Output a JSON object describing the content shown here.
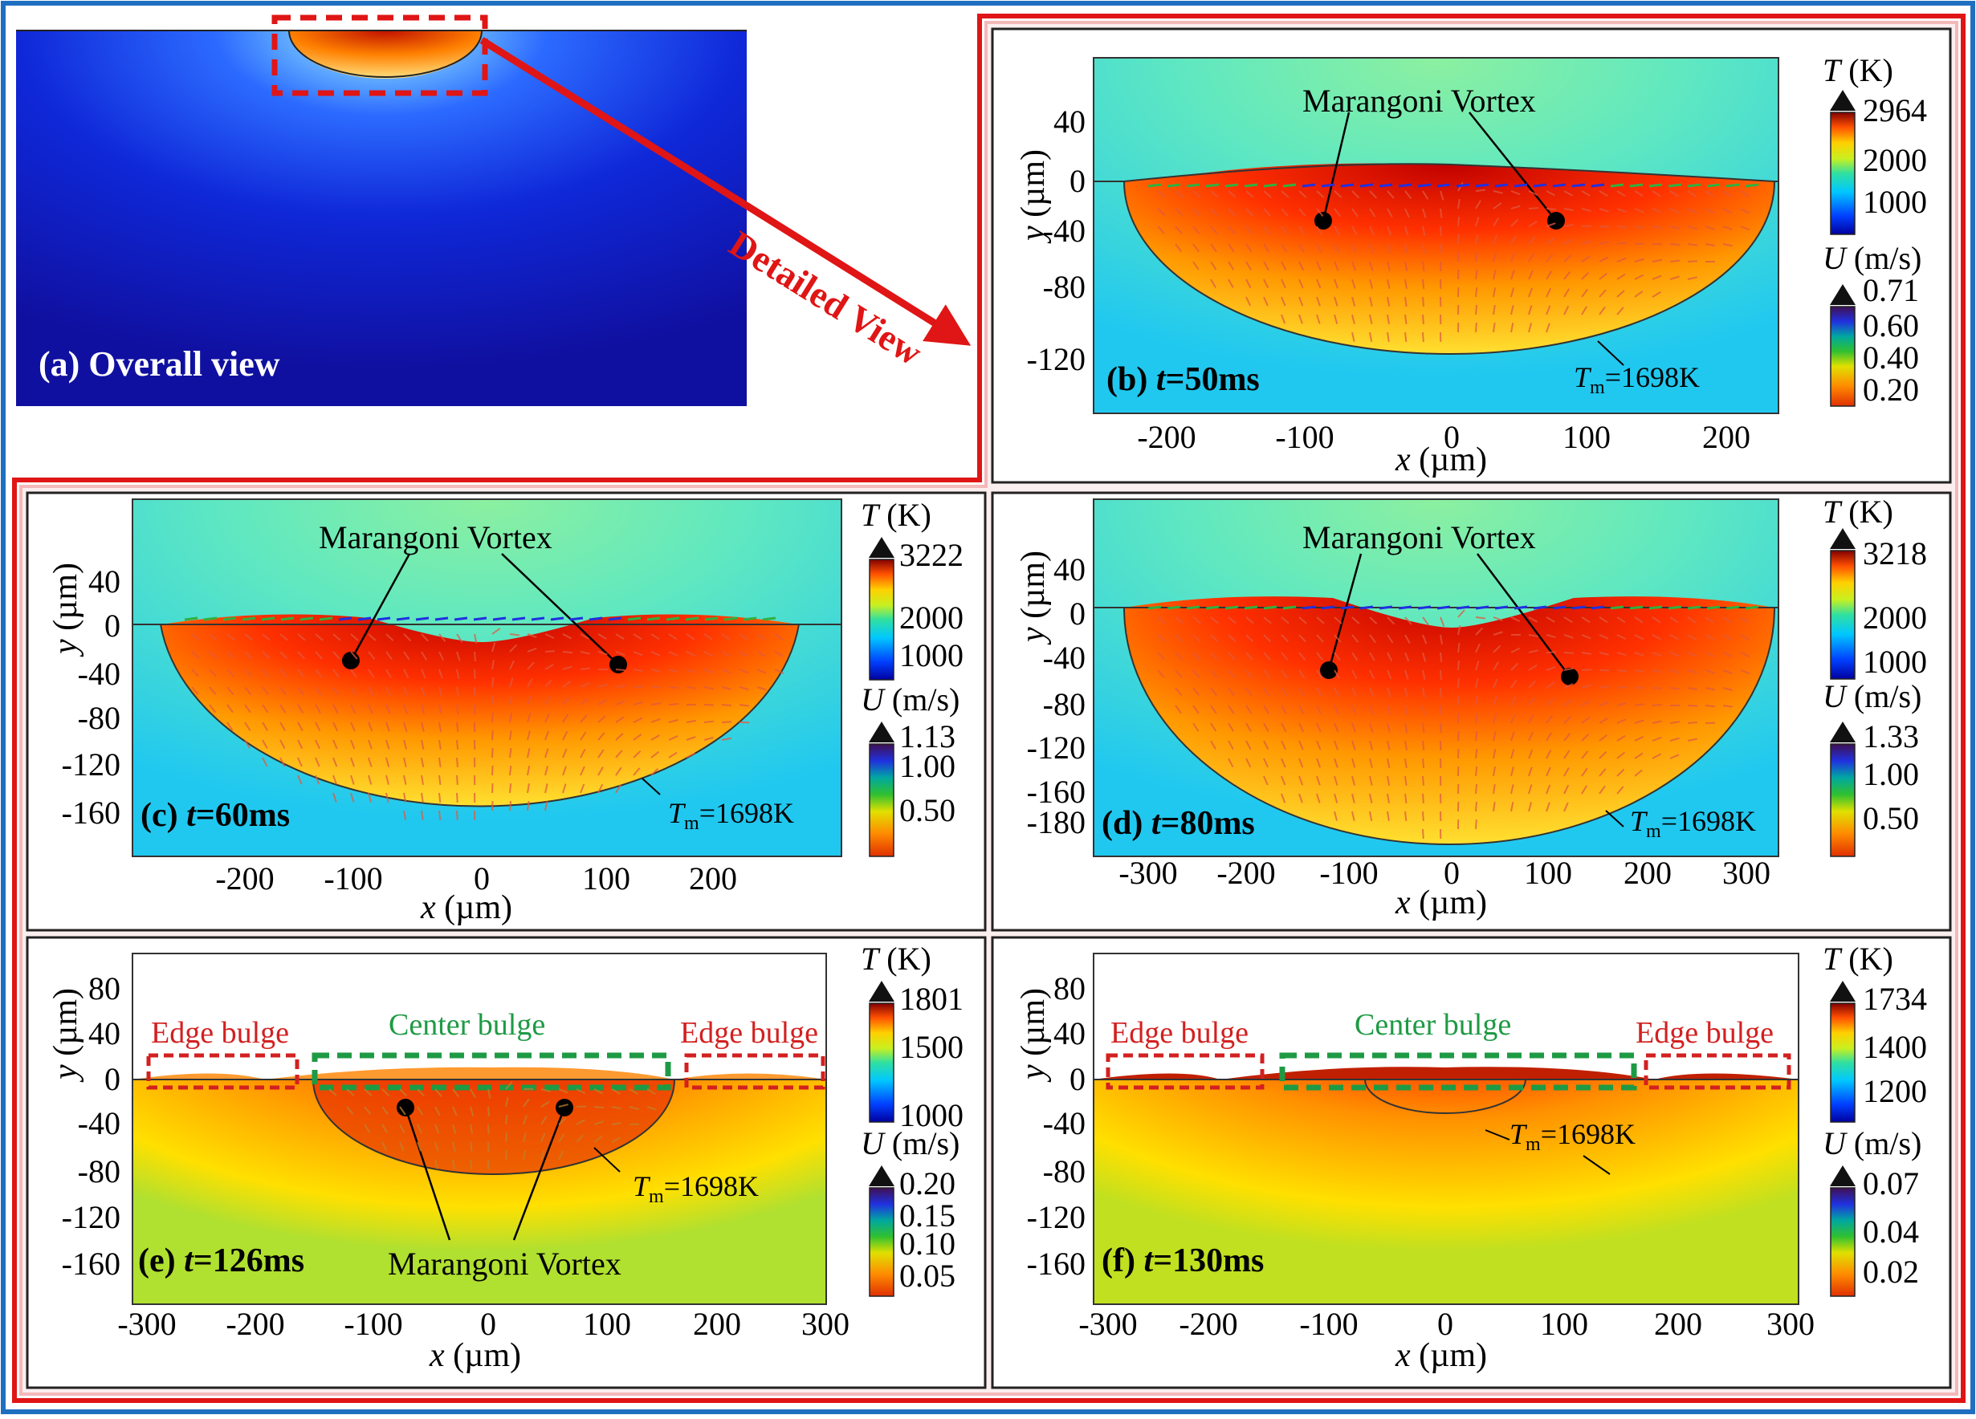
{
  "arrow_label": "Detailed View",
  "overall": {
    "label": "(a) Overall view"
  },
  "panels": [
    {
      "id": "b",
      "label_prefix": "(b) ",
      "label_t": "t",
      "label_rest": "=50ms",
      "x_ticks": [
        "-200",
        "-100",
        "0",
        "100",
        "200"
      ],
      "y_ticks": [
        "40",
        "0",
        "-40",
        "-80",
        "-120"
      ],
      "xlabel_var": "x",
      "xlabel_unit": " (µm)",
      "ylabel_var": "y",
      "ylabel_unit": " (µm)",
      "T_title_var": "T",
      "T_title_unit": " (K)",
      "T_ticks": [
        "2964",
        "2000",
        "1000"
      ],
      "U_title_var": "U",
      "U_title_unit": " (m/s)",
      "U_ticks": [
        "0.71",
        "0.60",
        "0.40",
        "0.20"
      ],
      "vortex_label": "Marangoni Vortex",
      "tm_var": "T",
      "tm_sub": "m",
      "tm_rest": "=1698K"
    },
    {
      "id": "c",
      "label_prefix": "(c) ",
      "label_t": "t",
      "label_rest": "=60ms",
      "x_ticks": [
        "-200",
        "-100",
        "0",
        "100",
        "200"
      ],
      "y_ticks": [
        "40",
        "0",
        "-40",
        "-80",
        "-120",
        "-160"
      ],
      "xlabel_var": "x",
      "xlabel_unit": " (µm)",
      "ylabel_var": "y",
      "ylabel_unit": " (µm)",
      "T_title_var": "T",
      "T_title_unit": " (K)",
      "T_ticks": [
        "3222",
        "2000",
        "1000"
      ],
      "U_title_var": "U",
      "U_title_unit": " (m/s)",
      "U_ticks": [
        "1.13",
        "1.00",
        "0.50"
      ],
      "vortex_label": "Marangoni Vortex",
      "tm_var": "T",
      "tm_sub": "m",
      "tm_rest": "=1698K"
    },
    {
      "id": "d",
      "label_prefix": "(d) ",
      "label_t": "t",
      "label_rest": "=80ms",
      "x_ticks": [
        "-300",
        "-200",
        "-100",
        "0",
        "100",
        "200",
        "300"
      ],
      "y_ticks": [
        "40",
        "0",
        "-40",
        "-80",
        "-120",
        "-160",
        "-180"
      ],
      "xlabel_var": "x",
      "xlabel_unit": " (µm)",
      "ylabel_var": "y",
      "ylabel_unit": " (µm)",
      "T_title_var": "T",
      "T_title_unit": " (K)",
      "T_ticks": [
        "3218",
        "2000",
        "1000"
      ],
      "U_title_var": "U",
      "U_title_unit": " (m/s)",
      "U_ticks": [
        "1.33",
        "1.00",
        "0.50"
      ],
      "vortex_label": "Marangoni Vortex",
      "tm_var": "T",
      "tm_sub": "m",
      "tm_rest": "=1698K"
    },
    {
      "id": "e",
      "label_prefix": "(e) ",
      "label_t": "t",
      "label_rest": "=126ms",
      "x_ticks": [
        "-300",
        "-200",
        "-100",
        "0",
        "100",
        "200",
        "300"
      ],
      "y_ticks": [
        "80",
        "40",
        "0",
        "-40",
        "-80",
        "-120",
        "-160"
      ],
      "xlabel_var": "x",
      "xlabel_unit": " (µm)",
      "ylabel_var": "y",
      "ylabel_unit": " (µm)",
      "T_title_var": "T",
      "T_title_unit": " (K)",
      "T_ticks": [
        "1801",
        "1500",
        "1000"
      ],
      "U_title_var": "U",
      "U_title_unit": " (m/s)",
      "U_ticks": [
        "0.20",
        "0.15",
        "0.10",
        "0.05"
      ],
      "vortex_label": "Marangoni Vortex",
      "edge_bulge": "Edge bulge",
      "center_bulge": "Center bulge",
      "tm_var": "T",
      "tm_sub": "m",
      "tm_rest": "=1698K"
    },
    {
      "id": "f",
      "label_prefix": "(f) ",
      "label_t": "t",
      "label_rest": "=130ms",
      "x_ticks": [
        "-300",
        "-200",
        "-100",
        "0",
        "100",
        "200",
        "300"
      ],
      "y_ticks": [
        "80",
        "40",
        "0",
        "-40",
        "-80",
        "-120",
        "-160"
      ],
      "xlabel_var": "x",
      "xlabel_unit": " (µm)",
      "ylabel_var": "y",
      "ylabel_unit": " (µm)",
      "T_title_var": "T",
      "T_title_unit": " (K)",
      "T_ticks": [
        "1734",
        "1400",
        "1200"
      ],
      "U_title_var": "U",
      "U_title_unit": " (m/s)",
      "U_ticks": [
        "0.07",
        "0.04",
        "0.02"
      ],
      "edge_bulge": "Edge bulge",
      "center_bulge": "Center bulge",
      "tm_var": "T",
      "tm_sub": "m",
      "tm_rest": "=1698K"
    }
  ],
  "colors": {
    "outer_border": "#1f6fc0",
    "highlight_red": "#e01515",
    "bulge_green": "#1e9a44",
    "substrate_cold": "#1a1aa8"
  }
}
